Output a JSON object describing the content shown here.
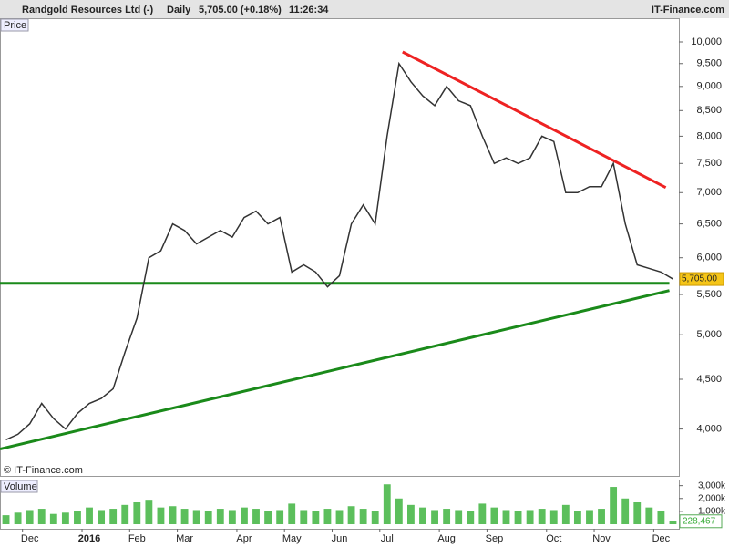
{
  "header": {
    "title": "Randgold Resources Ltd (-)",
    "period": "Daily",
    "quote": "5,705.00 (+0.18%)",
    "time": "11:26:34",
    "brand": "IT-Finance.com"
  },
  "chart_data": [
    {
      "type": "line",
      "label": "Price",
      "watermark": "© IT-Finance.com",
      "log_scale": true,
      "categories": [
        null,
        null,
        "Dec",
        null,
        null,
        null,
        null,
        "2016",
        null,
        null,
        null,
        "Feb",
        null,
        null,
        null,
        "Mar",
        null,
        null,
        null,
        null,
        "Apr",
        null,
        null,
        null,
        "May",
        null,
        null,
        null,
        "Jun",
        null,
        null,
        null,
        "Jul",
        null,
        null,
        null,
        null,
        "Aug",
        null,
        null,
        null,
        "Sep",
        null,
        null,
        null,
        null,
        "Oct",
        null,
        null,
        null,
        "Nov",
        null,
        null,
        null,
        null,
        "Dec",
        null
      ],
      "series": [
        {
          "name": "Close",
          "color": "#333333",
          "values": [
            3900,
            3950,
            4050,
            4250,
            4100,
            4000,
            4150,
            4250,
            4300,
            4400,
            4800,
            5200,
            6000,
            6100,
            6500,
            6400,
            6200,
            6300,
            6400,
            6300,
            6600,
            6700,
            6500,
            6600,
            5800,
            5900,
            5800,
            5600,
            5750,
            6500,
            6800,
            6500,
            8000,
            9500,
            9100,
            8800,
            8600,
            9000,
            8700,
            8600,
            8000,
            7500,
            7600,
            7500,
            7600,
            8000,
            7900,
            7000,
            7000,
            7100,
            7100,
            7500,
            6500,
            5900,
            5850,
            5800,
            5705
          ]
        }
      ],
      "last_value": {
        "value": 5705,
        "label": "5,705.00"
      },
      "trendlines": [
        {
          "color": "#ee2222",
          "x": [
            33.3,
            55.4
          ],
          "values": [
            9765,
            7085
          ]
        },
        {
          "color": "#1a8a1a",
          "x": [
            -0.5,
            55.7
          ],
          "values": [
            5648,
            5648
          ]
        },
        {
          "color": "#1a8a1a",
          "x": [
            -0.5,
            55.7
          ],
          "values": [
            3815,
            5552
          ]
        }
      ],
      "ylim": [
        3580,
        10240
      ],
      "yticks": [
        {
          "value": 4000,
          "label": "4,000"
        },
        {
          "value": 4500,
          "label": "4,500"
        },
        {
          "value": 5000,
          "label": "5,000"
        },
        {
          "value": 5500,
          "label": "5,500"
        },
        {
          "value": 6000,
          "label": "6,000"
        },
        {
          "value": 6500,
          "label": "6,500"
        },
        {
          "value": 7000,
          "label": "7,000"
        },
        {
          "value": 7500,
          "label": "7,500"
        },
        {
          "value": 8000,
          "label": "8,000"
        },
        {
          "value": 8500,
          "label": "8,500"
        },
        {
          "value": 9000,
          "label": "9,000"
        },
        {
          "value": 9500,
          "label": "9,500"
        },
        {
          "value": 10000,
          "label": "10,000"
        }
      ]
    },
    {
      "type": "bar",
      "label": "Volume",
      "color": "#5cbf5c",
      "values": [
        700,
        900,
        1100,
        1200,
        800,
        900,
        1000,
        1300,
        1100,
        1200,
        1500,
        1700,
        1900,
        1300,
        1400,
        1200,
        1100,
        1000,
        1200,
        1100,
        1300,
        1200,
        1000,
        1100,
        1600,
        1100,
        1000,
        1200,
        1100,
        1400,
        1200,
        1000,
        3100,
        2000,
        1500,
        1300,
        1100,
        1200,
        1100,
        1000,
        1600,
        1300,
        1100,
        1000,
        1100,
        1200,
        1100,
        1500,
        1000,
        1100,
        1200,
        2900,
        2000,
        1700,
        1300,
        1000,
        228.467
      ],
      "last_value": {
        "value": 228.467,
        "label": "228,467"
      },
      "ylim": [
        0,
        3400
      ],
      "yticks": [
        {
          "value": 1000,
          "label": "1,000k"
        },
        {
          "value": 2000,
          "label": "2,000k"
        },
        {
          "value": 3000,
          "label": "3,000k"
        }
      ]
    }
  ]
}
